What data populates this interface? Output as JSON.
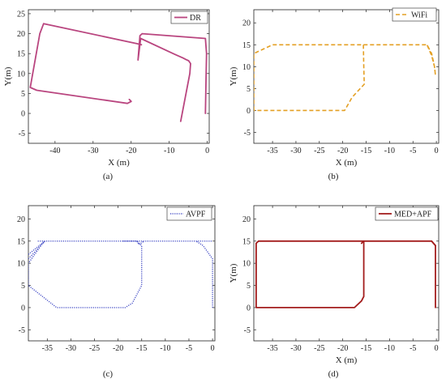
{
  "figure": {
    "captions": [
      "(a)",
      "(b)",
      "(c)",
      "(d)"
    ]
  },
  "chart_data": [
    {
      "type": "line",
      "legend": "DR",
      "legend_position": "top-right",
      "color": "#b9457f",
      "style": "solid",
      "xlabel": "X (m)",
      "ylabel": "Y(m)",
      "xlim": [
        -47,
        0.5
      ],
      "ylim": [
        -7.5,
        26
      ],
      "xticks": [
        -40,
        -30,
        -20,
        -10,
        0
      ],
      "yticks": [
        -5,
        0,
        5,
        10,
        15,
        20,
        25
      ],
      "series": [
        {
          "x": [
            -7,
            -4.6,
            -4.4,
            -4.9,
            -5.6,
            -6.4,
            -8.5,
            -17.5,
            -18.2,
            -17.7,
            -17.1,
            -0.5,
            -0.2,
            -0.3,
            -0.5
          ],
          "y": [
            -2,
            10,
            12.5,
            13.2,
            13.5,
            13.9,
            14.8,
            18.8,
            13.4,
            19.5,
            20,
            18.8,
            15,
            10,
            0
          ]
        },
        {
          "x": [
            -20.5,
            -20,
            -21,
            -44.8,
            -46.5,
            -44,
            -43,
            -18.5,
            -17.3
          ],
          "y": [
            3.5,
            3,
            2.5,
            5.8,
            6.5,
            20,
            22.5,
            17.5,
            17.2
          ]
        }
      ]
    },
    {
      "type": "line",
      "legend": "WiFi",
      "legend_position": "top-right",
      "color": "#e4a024",
      "style": "dashed",
      "xlabel": "X (m)",
      "ylabel": "Y(m)",
      "xlim": [
        -39,
        0.5
      ],
      "ylim": [
        -7.5,
        23
      ],
      "xticks": [
        -35,
        -30,
        -25,
        -20,
        -15,
        -10,
        -5,
        0
      ],
      "yticks": [
        -5,
        0,
        5,
        10,
        15,
        20
      ],
      "series": [
        {
          "x": [
            -39,
            -39,
            -35,
            -2,
            -1,
            -0.4,
            -0.2,
            -0.4,
            -1,
            -2
          ],
          "y": [
            0,
            13,
            15,
            15,
            13,
            10,
            8,
            10,
            12.5,
            15
          ]
        },
        {
          "x": [
            -15.6,
            -15.5,
            -15.4,
            -18,
            -19.6,
            -39
          ],
          "y": [
            15,
            10,
            6,
            3,
            0,
            0
          ]
        }
      ]
    },
    {
      "type": "line",
      "legend": "AVPF",
      "legend_position": "top-right",
      "color": "#4b54c8",
      "style": "dotted",
      "xlabel": "",
      "ylabel": "",
      "xlim": [
        -39,
        0.5
      ],
      "ylim": [
        -7.5,
        23
      ],
      "xticks": [
        -35,
        -30,
        -25,
        -20,
        -15,
        -10,
        -5,
        0
      ],
      "yticks": [
        -5,
        0,
        5,
        10,
        15,
        20
      ],
      "series": [
        {
          "x": [
            -37,
            0
          ],
          "y": [
            15,
            15
          ]
        },
        {
          "x": [
            0,
            0,
            -2,
            -3.5
          ],
          "y": [
            0,
            11,
            14,
            15
          ]
        },
        {
          "x": [
            -19,
            -16,
            -15,
            -15,
            -17,
            -18.5,
            -33,
            -39,
            -39,
            -36,
            -35.5
          ],
          "y": [
            15,
            15,
            14,
            5,
            1,
            0,
            0,
            5,
            10,
            14.5,
            15
          ]
        },
        {
          "x": [
            -39,
            -35.5
          ],
          "y": [
            11,
            15
          ]
        },
        {
          "x": [
            -39,
            -35.5
          ],
          "y": [
            12,
            15
          ]
        },
        {
          "x": [
            -16,
            -15.6,
            -14.5
          ],
          "y": [
            15,
            14.2,
            15
          ]
        }
      ]
    },
    {
      "type": "line",
      "legend": "MED+APF",
      "legend_position": "top-right",
      "color": "#a31d1d",
      "style": "solid",
      "xlabel": "X (m)",
      "ylabel": "Y(m)",
      "xlim": [
        -39,
        0.5
      ],
      "ylim": [
        -7.5,
        23
      ],
      "xticks": [
        -35,
        -30,
        -25,
        -20,
        -15,
        -10,
        -5,
        0
      ],
      "yticks": [
        -5,
        0,
        5,
        10,
        15,
        20
      ],
      "series": [
        {
          "x": [
            -38.5,
            -38.5,
            -38,
            -15.5,
            -15.5,
            -16,
            -17.5,
            -38.5
          ],
          "y": [
            0,
            14.5,
            15,
            15,
            2.5,
            1.5,
            0,
            0
          ]
        },
        {
          "x": [
            -16,
            -15.5,
            -1,
            -0.2,
            -0.2
          ],
          "y": [
            14.5,
            15,
            15,
            14,
            0
          ]
        },
        {
          "x": [
            -1,
            -0.2
          ],
          "y": [
            15,
            14
          ]
        }
      ]
    }
  ]
}
